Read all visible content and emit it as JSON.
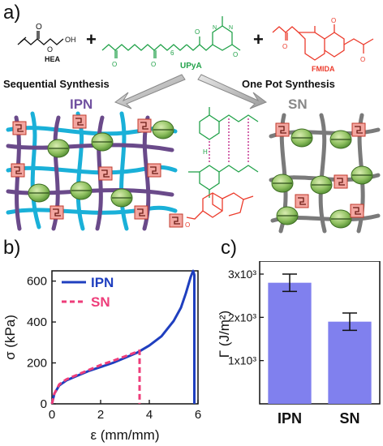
{
  "panels": {
    "a": "a)",
    "b": "b)",
    "c": "c)"
  },
  "scheme": {
    "hea_label": "HEA",
    "upya_label": "UPyA",
    "upya_subscript": "6",
    "fmida_label": "FMIDA",
    "plus": "+",
    "sequential_label": "Sequential Synthesis",
    "onepot_label": "One Pot Synthesis",
    "ipn_label": "IPN",
    "sn_label": "SN",
    "hb_label": "H",
    "methyl_label": "O"
  },
  "colors": {
    "ipn_line": "#1f3fbf",
    "sn_line": "#ee3d7a",
    "bar": "#8080ee",
    "upya_green": "#22a24a",
    "fmida_red": "#ec3b2c",
    "ipn_purple": "#7050a0",
    "sn_gray": "#777777",
    "cyan_strand": "#1ab0d8",
    "purple_strand": "#6a4a8a"
  },
  "chart_data": [
    {
      "type": "line",
      "xlabel": "ε (mm/mm)",
      "ylabel": "σ (kPa)",
      "xlim": [
        0,
        6
      ],
      "ylim": [
        0,
        650
      ],
      "xticks": [
        "0",
        "2",
        "4",
        "6"
      ],
      "yticks": [
        "0",
        "200",
        "400",
        "600"
      ],
      "legend_position": "top-left",
      "series": [
        {
          "name": "IPN",
          "style": "solid",
          "x": [
            0,
            0.1,
            0.3,
            0.6,
            1.0,
            1.5,
            2.0,
            2.5,
            3.0,
            3.5,
            4.0,
            4.5,
            5.0,
            5.3,
            5.5,
            5.7,
            5.8,
            5.85,
            5.85
          ],
          "y": [
            0,
            50,
            90,
            115,
            135,
            160,
            180,
            200,
            225,
            250,
            285,
            330,
            405,
            470,
            540,
            620,
            650,
            630,
            0
          ]
        },
        {
          "name": "SN",
          "style": "dashed",
          "x": [
            0,
            0.1,
            0.3,
            0.6,
            1.0,
            1.5,
            2.0,
            2.5,
            3.0,
            3.4,
            3.6,
            3.6
          ],
          "y": [
            0,
            50,
            95,
            120,
            140,
            165,
            190,
            210,
            232,
            250,
            260,
            0
          ]
        }
      ]
    },
    {
      "type": "bar",
      "categories": [
        "IPN",
        "SN"
      ],
      "values": [
        2800,
        1900
      ],
      "errors": [
        200,
        200
      ],
      "ylabel": "Γ (J/m²)",
      "ylim": [
        0,
        3300
      ],
      "yticks": [
        "1x10³",
        "2x10³",
        "3x10³"
      ],
      "ytick_values": [
        1000,
        2000,
        3000
      ]
    }
  ]
}
